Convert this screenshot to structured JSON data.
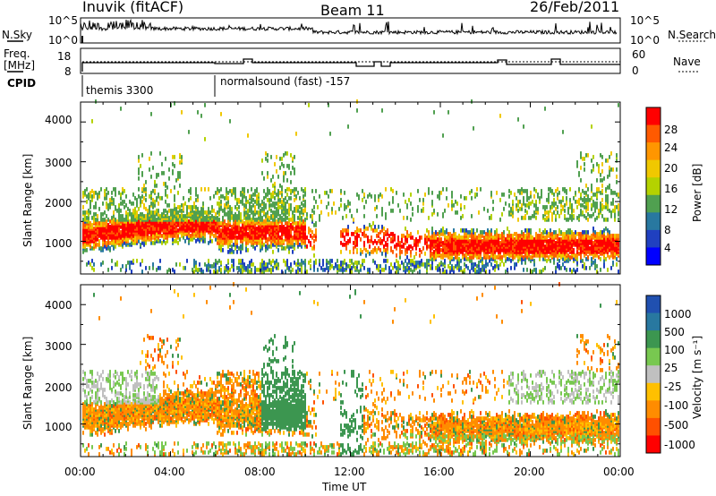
{
  "header": {
    "station": "Inuvik (fitACF)",
    "beam": "Beam 11",
    "date": "26/Feb/2011"
  },
  "strip": {
    "nsky_label": "N.Sky",
    "nsky_max": "10^5",
    "nsky_min": "10^0",
    "nsearch_label": "N.Search",
    "nsearch_max": "10^5",
    "nsearch_min": "10^0",
    "freq_label": "Freq.",
    "freq_unit": "[MHz]",
    "freq_max": "18",
    "freq_min": "8",
    "nave_label": "Nave",
    "nave_max": "60",
    "nave_min": "0",
    "cpid_label": "CPID",
    "cpid_1": "themis 3300",
    "cpid_2": "normalsound (fast) -157"
  },
  "chart_data": [
    {
      "type": "heatmap",
      "name": "power-panel",
      "ylabel": "Slant Range [km]",
      "xlabel": "",
      "colorbar_label": "Power [dB]",
      "colorbar_ticks": [
        "28",
        "24",
        "20",
        "16",
        "12",
        "8",
        "4"
      ],
      "colorbar_colors": [
        "#ff0000",
        "#ff5a00",
        "#ff9600",
        "#f0c800",
        "#b4d200",
        "#50a050",
        "#2878a0",
        "#2040c0",
        "#0000ff"
      ],
      "y_ticks": [
        "4000",
        "3000",
        "2000",
        "1000"
      ],
      "ylim": [
        180,
        4500
      ],
      "xlim": [
        0,
        24
      ]
    },
    {
      "type": "heatmap",
      "name": "velocity-panel",
      "ylabel": "Slant Range [km]",
      "xlabel": "Time UT",
      "colorbar_label": "Velocity [m s⁻¹]",
      "colorbar_ticks": [
        "1000",
        "500",
        "100",
        "25",
        "-25",
        "-100",
        "-500",
        "-1000"
      ],
      "colorbar_colors": [
        "#2050b0",
        "#2878a0",
        "#3c9650",
        "#78c850",
        "#c0c0c0",
        "#ffc000",
        "#ff8c00",
        "#ff5000",
        "#ff0000"
      ],
      "y_ticks": [
        "4000",
        "3000",
        "2000",
        "1000"
      ],
      "x_ticks": [
        "00:00",
        "04:00",
        "08:00",
        "12:00",
        "16:00",
        "20:00",
        "00:00"
      ],
      "ylim": [
        180,
        4500
      ],
      "xlim": [
        0,
        24
      ]
    }
  ]
}
